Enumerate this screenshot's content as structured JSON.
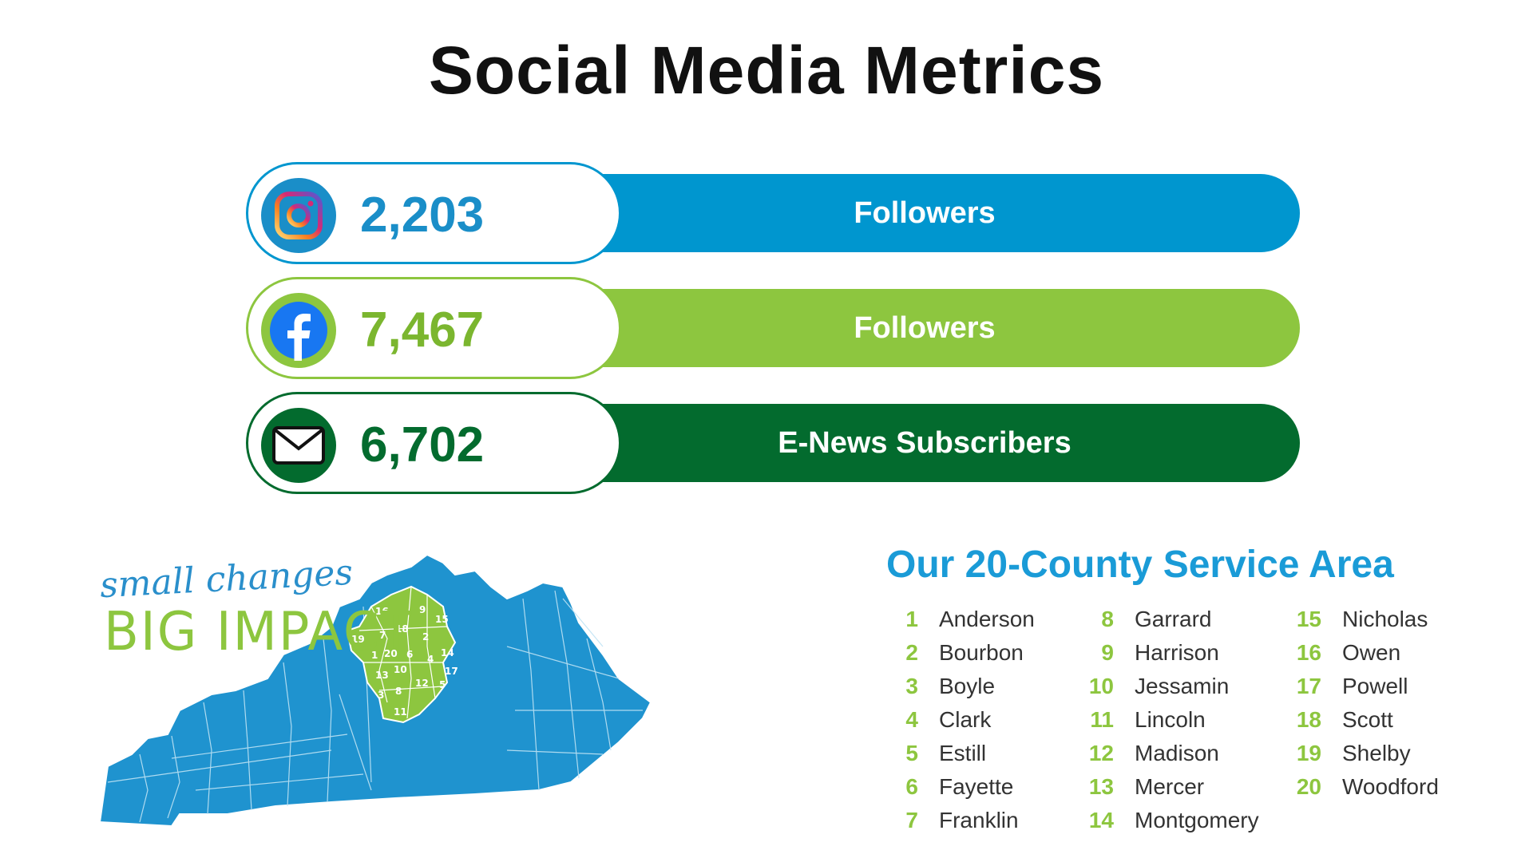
{
  "title": "Social Media Metrics",
  "metrics": [
    {
      "platform_icon": "instagram-icon",
      "value": "2,203",
      "label": "Followers",
      "color": "#0096cf"
    },
    {
      "platform_icon": "facebook-icon",
      "value": "7,467",
      "label": "Followers",
      "color": "#8dc63f"
    },
    {
      "platform_icon": "mail-icon",
      "value": "6,702",
      "label": "E-News Subscribers",
      "color": "#036b2e"
    }
  ],
  "slogan": {
    "line1": "small changes",
    "line2": "BIG IMPACT"
  },
  "service_area": {
    "title": "Our 20-County Service Area",
    "counties": [
      {
        "num": "1",
        "name": "Anderson"
      },
      {
        "num": "2",
        "name": "Bourbon"
      },
      {
        "num": "3",
        "name": "Boyle"
      },
      {
        "num": "4",
        "name": "Clark"
      },
      {
        "num": "5",
        "name": "Estill"
      },
      {
        "num": "6",
        "name": "Fayette"
      },
      {
        "num": "7",
        "name": "Franklin"
      },
      {
        "num": "8",
        "name": "Garrard"
      },
      {
        "num": "9",
        "name": "Harrison"
      },
      {
        "num": "10",
        "name": "Jessamin"
      },
      {
        "num": "11",
        "name": "Lincoln"
      },
      {
        "num": "12",
        "name": "Madison"
      },
      {
        "num": "13",
        "name": "Mercer"
      },
      {
        "num": "14",
        "name": "Montgomery"
      },
      {
        "num": "15",
        "name": "Nicholas"
      },
      {
        "num": "16",
        "name": "Owen"
      },
      {
        "num": "17",
        "name": "Powell"
      },
      {
        "num": "18",
        "name": "Scott"
      },
      {
        "num": "19",
        "name": "Shelby"
      },
      {
        "num": "20",
        "name": "Woodford"
      }
    ]
  },
  "map": {
    "state_color": "#1f93cf",
    "region_color": "#8dc63f",
    "map_labels": [
      "16",
      "9",
      "15",
      "18",
      "2",
      "19",
      "7",
      "1",
      "20",
      "6",
      "4",
      "14",
      "10",
      "17",
      "13",
      "12",
      "5",
      "3",
      "8",
      "11"
    ]
  }
}
